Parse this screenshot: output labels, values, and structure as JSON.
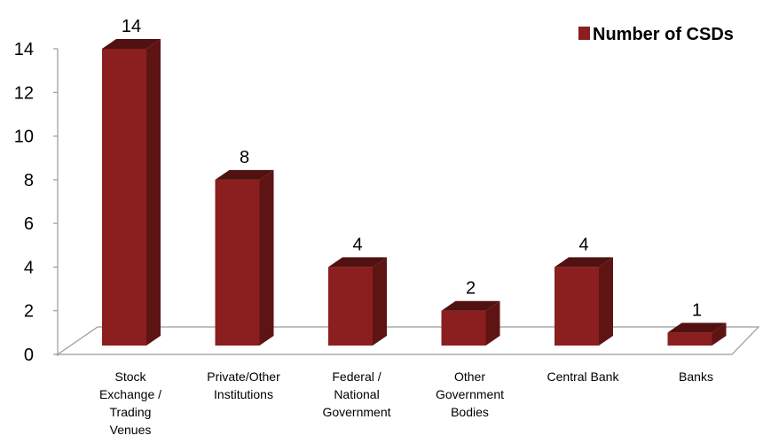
{
  "chart_data": {
    "type": "bar",
    "title": "",
    "xlabel": "",
    "ylabel": "",
    "categories": [
      "Stock Exchange / Trading Venues",
      "Private/Other Institutions",
      "Federal / National Government",
      "Other Government Bodies",
      "Central Bank",
      "Banks"
    ],
    "category_lines": [
      [
        "Stock",
        "Exchange /",
        "Trading",
        "Venues"
      ],
      [
        "Private/Other",
        "Institutions"
      ],
      [
        "Federal /",
        "National",
        "Government"
      ],
      [
        "Other",
        "Government",
        "Bodies"
      ],
      [
        "Central Bank"
      ],
      [
        "Banks"
      ]
    ],
    "series": [
      {
        "name": "Number of CSDs",
        "values": [
          14,
          8,
          4,
          2,
          4,
          1
        ],
        "color": "#8B1E1E"
      }
    ],
    "ylim": [
      0,
      14
    ],
    "yticks": [
      0,
      2,
      4,
      6,
      8,
      10,
      12,
      14
    ],
    "data_labels": true,
    "grid": false,
    "legend_position": "top-right",
    "style": "3d-column"
  }
}
